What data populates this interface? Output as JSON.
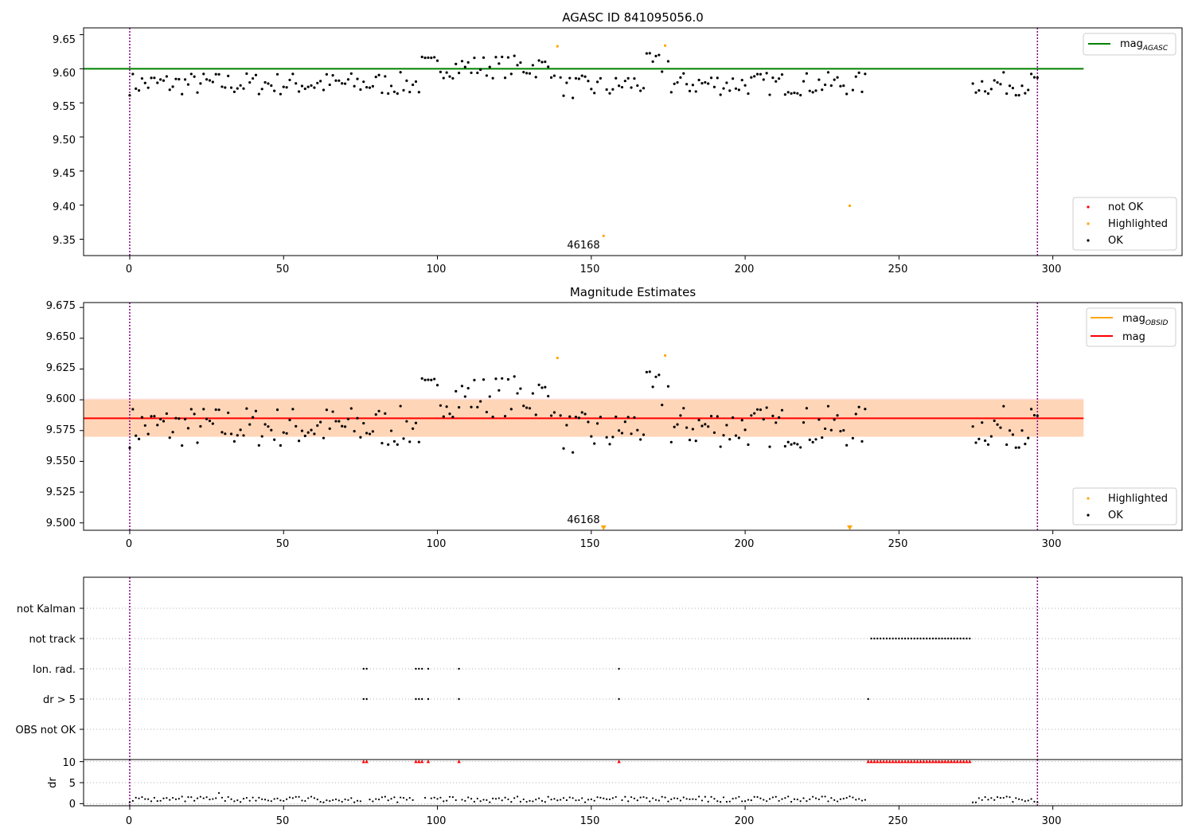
{
  "chart_data": [
    {
      "type": "scatter",
      "title": "AGASC ID 841095056.0",
      "xlabel": "",
      "ylabel": "",
      "xlim": [
        -15,
        342
      ],
      "ylim": [
        9.326,
        9.66
      ],
      "xticks": [
        0,
        50,
        100,
        150,
        200,
        250,
        300
      ],
      "yticks": [
        9.35,
        9.4,
        9.45,
        9.5,
        9.55,
        9.6,
        9.65
      ],
      "ytick_labels": [
        "9.35",
        "9.40",
        "9.45",
        "9.50",
        "9.55",
        "9.60",
        "9.65"
      ],
      "reference_line": {
        "label": "mag_AGASC",
        "value": 9.6,
        "x_range": [
          -15,
          310
        ],
        "color": "#008000"
      },
      "vlines": [
        0,
        295
      ],
      "vline_color": "#800080",
      "highlighted": {
        "x": [
          139,
          154,
          174,
          234
        ],
        "y": [
          9.633,
          9.355,
          9.634,
          9.399
        ]
      },
      "annotation": {
        "text": "46168",
        "x": 147,
        "y": 9.338
      },
      "legend_lines": [
        {
          "label": "mag",
          "subscript": "AGASC",
          "color": "#008000"
        }
      ],
      "legend_markers": [
        {
          "label": "not OK",
          "color": "#ff0000"
        },
        {
          "label": "Highlighted",
          "color": "#ffa500"
        },
        {
          "label": "OK",
          "color": "#000000"
        }
      ]
    },
    {
      "type": "scatter",
      "title": "Magnitude Estimates",
      "xlabel": "",
      "ylabel": "",
      "xlim": [
        -15,
        342
      ],
      "ylim": [
        9.494,
        9.679
      ],
      "xticks": [
        0,
        50,
        100,
        150,
        200,
        250,
        300
      ],
      "yticks": [
        9.5,
        9.525,
        9.55,
        9.575,
        9.6,
        9.625,
        9.65,
        9.675
      ],
      "ytick_labels": [
        "9.500",
        "9.525",
        "9.550",
        "9.575",
        "9.600",
        "9.625",
        "9.650",
        "9.675"
      ],
      "mean_line": {
        "label": "mag",
        "value": 9.585,
        "color": "#ff0000"
      },
      "band_outer": [
        9.57,
        9.601
      ],
      "band_inner": [
        9.57,
        9.6
      ],
      "x_range": [
        -15,
        310
      ],
      "vlines": [
        0,
        295
      ],
      "vline_color": "#800080",
      "highlighted": {
        "x": [
          139,
          174
        ],
        "y": [
          9.634,
          9.636
        ]
      },
      "clipped_markers": {
        "x": [
          154,
          234
        ],
        "y": 9.496
      },
      "annotation": {
        "text": "46168",
        "x": 147,
        "y": 9.504
      },
      "legend_lines": [
        {
          "label": "mag",
          "subscript": "OBSID",
          "color": "#ffa500"
        },
        {
          "label": "mag",
          "subscript": "",
          "color": "#ff0000"
        }
      ],
      "legend_markers": [
        {
          "label": "Highlighted",
          "color": "#ffa500"
        },
        {
          "label": "OK",
          "color": "#000000"
        }
      ]
    },
    {
      "type": "scatter",
      "title": "",
      "xlabel": "",
      "ylabel": "",
      "xlim": [
        -15,
        342
      ],
      "categories": [
        "not Kalman",
        "not track",
        "Ion. rad.",
        "dr > 5",
        "OBS not OK"
      ],
      "vlines": [
        0,
        295
      ],
      "flags": {
        "not Kalman": [],
        "not track": {
          "from": 241,
          "to": 273
        },
        "Ion. rad.": [
          76,
          77,
          93,
          94,
          95,
          97,
          107,
          159
        ],
        "dr > 5": [
          76,
          77,
          93,
          94,
          95,
          97,
          107,
          159,
          240
        ],
        "OBS not OK": []
      }
    },
    {
      "type": "scatter",
      "title": "",
      "xlabel": "",
      "ylabel": "dr",
      "xlim": [
        -15,
        342
      ],
      "ylim": [
        -0.5,
        10.5
      ],
      "xticks": [
        0,
        50,
        100,
        150,
        200,
        250,
        300
      ],
      "yticks": [
        0,
        5,
        10
      ],
      "ytick_labels": [
        "0",
        "5",
        "10"
      ],
      "capped_value": 10,
      "capped_color": "#ff0000",
      "capped_x_single": [
        76,
        77,
        93,
        94,
        95,
        97,
        107,
        159
      ],
      "capped_x_range": {
        "from": 240,
        "to": 273
      }
    }
  ]
}
